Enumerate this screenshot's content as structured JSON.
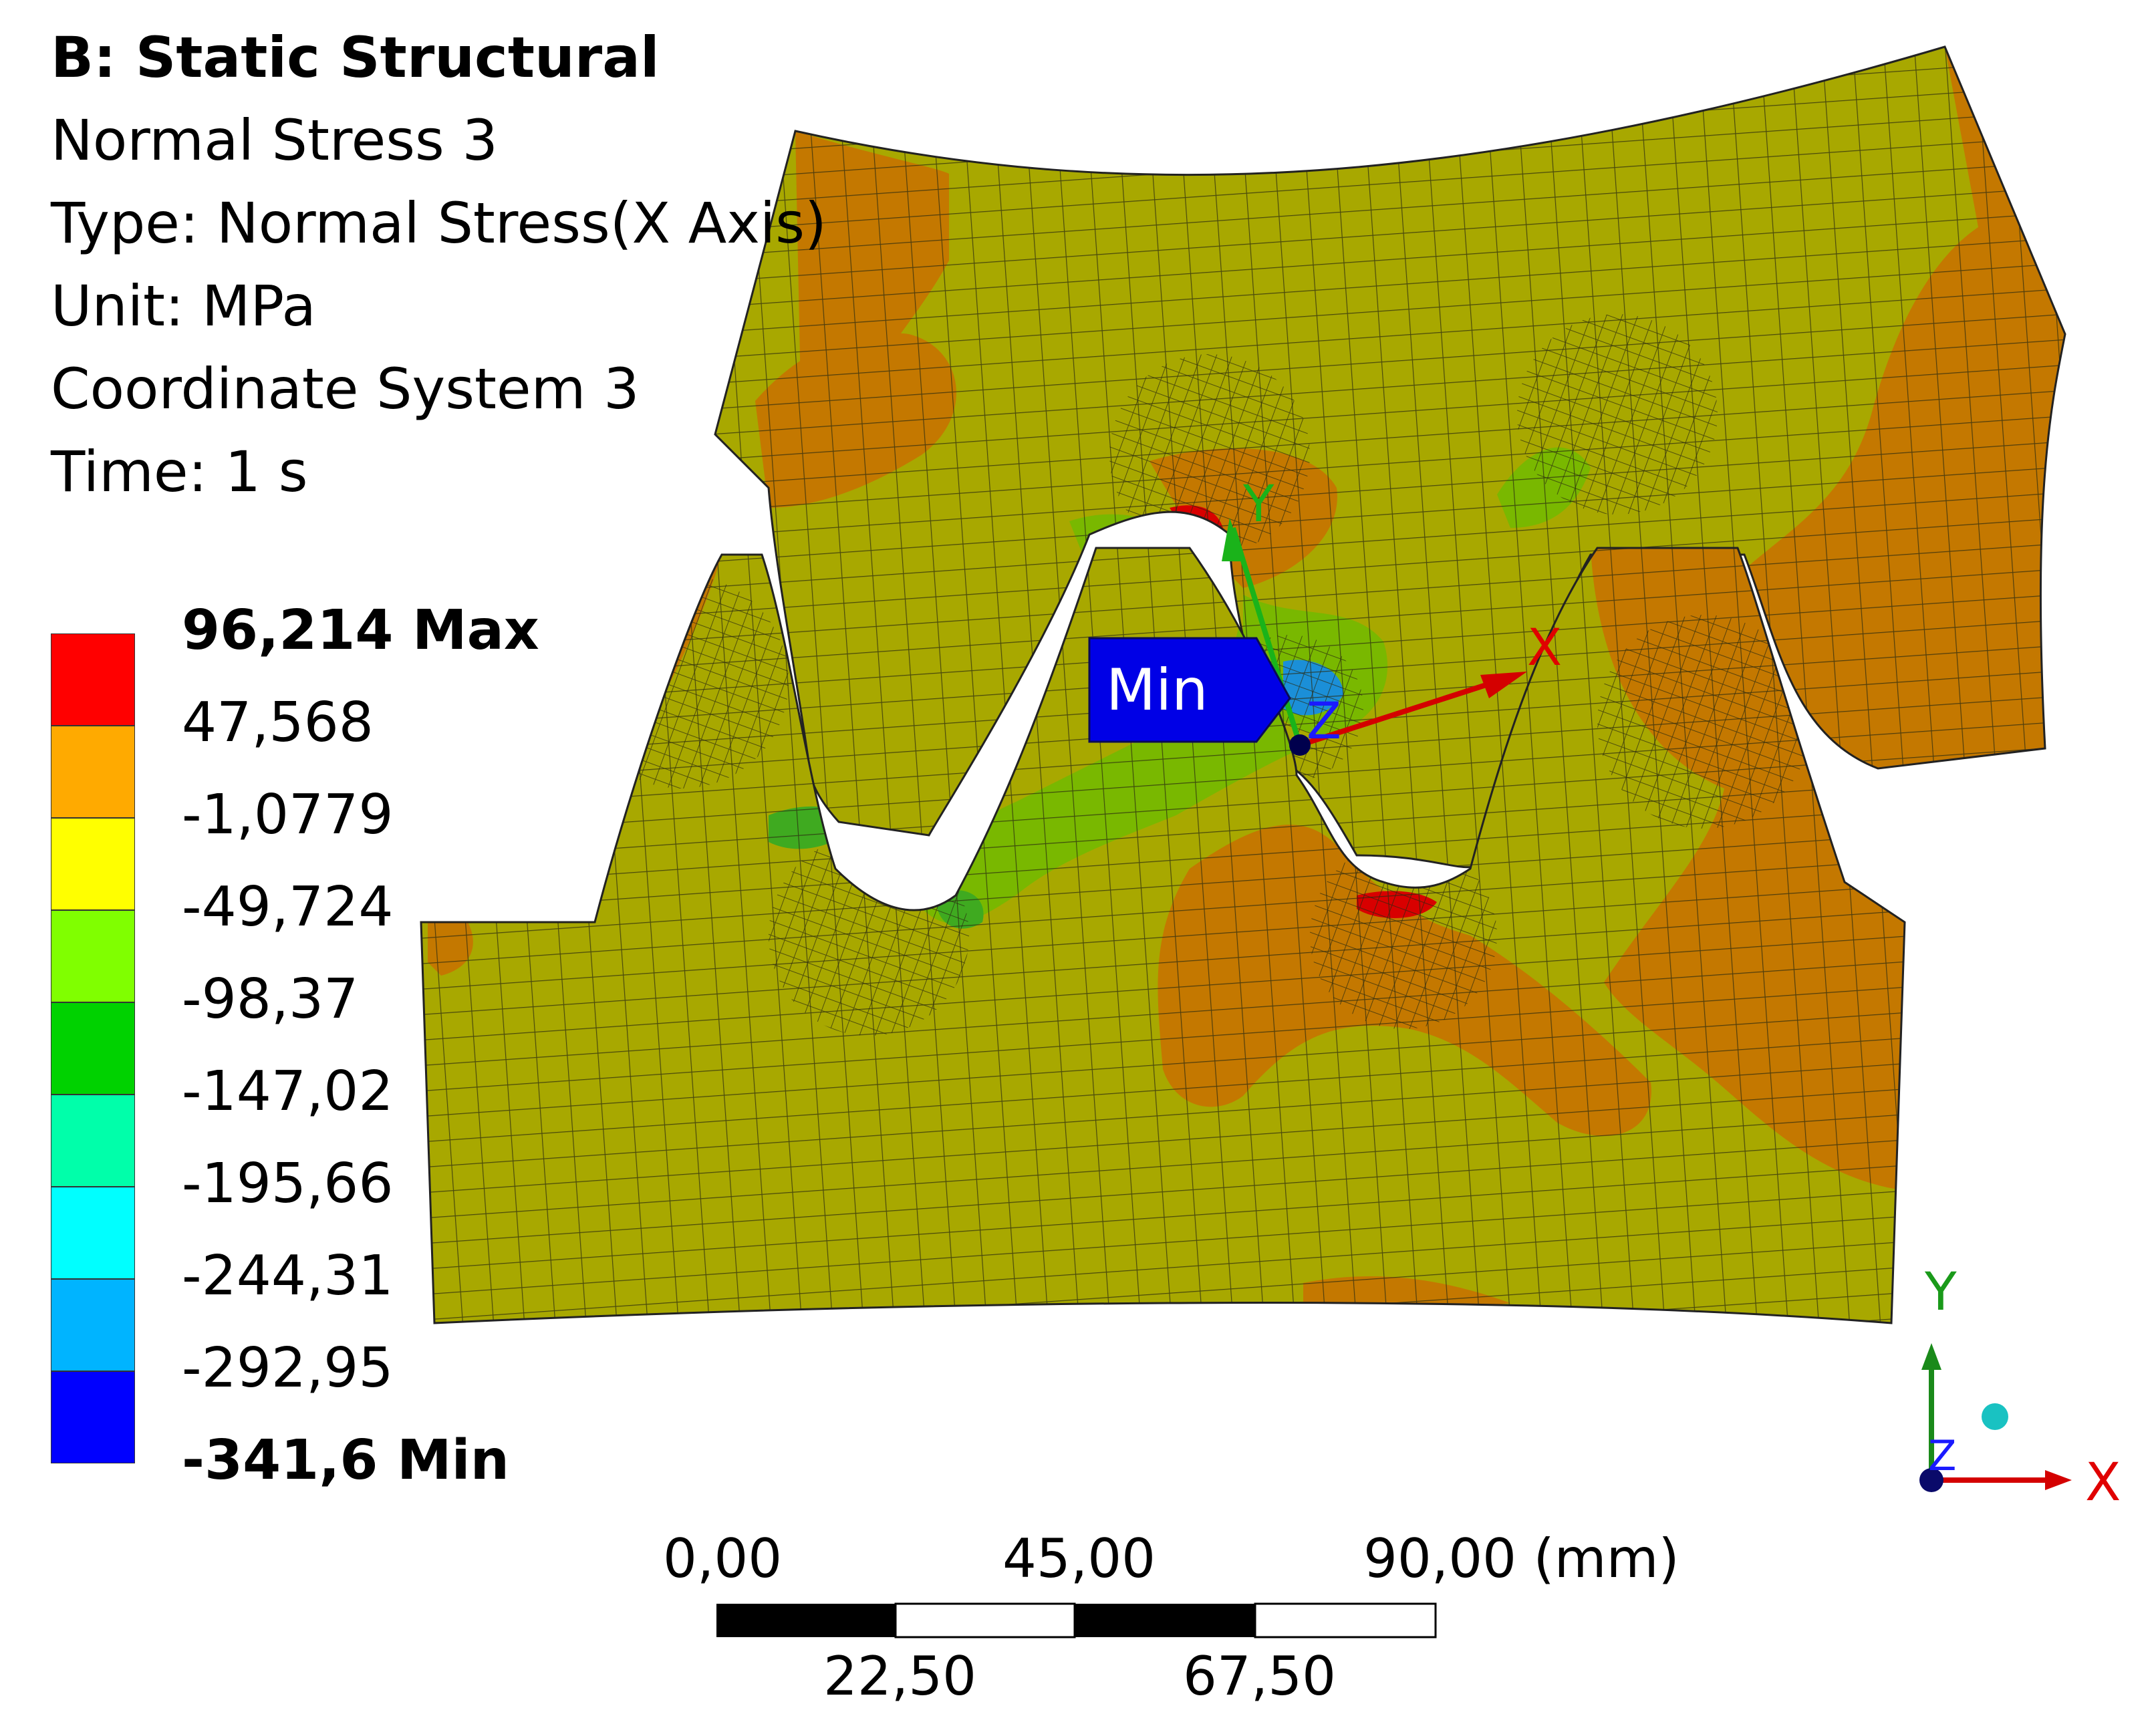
{
  "header": {
    "title": "B: Static Structural",
    "result_name": "Normal Stress 3",
    "type": "Type: Normal Stress(X Axis)",
    "unit": "Unit: MPa",
    "coordinate_system": "Coordinate System 3",
    "time": "Time: 1 s"
  },
  "legend": {
    "labels": [
      "96,214 Max",
      "47,568",
      "-1,0779",
      "-49,724",
      "-98,37",
      "-147,02",
      "-195,66",
      "-244,31",
      "-292,95",
      "-341,6 Min"
    ],
    "colors": [
      "#ff0000",
      "#ffaa00",
      "#ffff00",
      "#80ff00",
      "#00d200",
      "#00ffaa",
      "#00ffff",
      "#00b4ff",
      "#0000ff"
    ]
  },
  "probe": {
    "min_label": "Min",
    "color": "#0000e6"
  },
  "local_axes": {
    "x": "X",
    "y": "Y",
    "z": "Z"
  },
  "triad": {
    "x": "X",
    "y": "Y",
    "z": "Z"
  },
  "scale_bar": {
    "top_labels": [
      "0,00",
      "45,00",
      "90,00 (mm)"
    ],
    "bottom_labels": [
      "22,50",
      "67,50"
    ]
  },
  "mesh_colors": {
    "base": "#a8a800",
    "warm": "#c47800",
    "mid_green": "#79b800",
    "green": "#3faa20",
    "blue": "#1b8fd8",
    "red": "#d80000"
  }
}
